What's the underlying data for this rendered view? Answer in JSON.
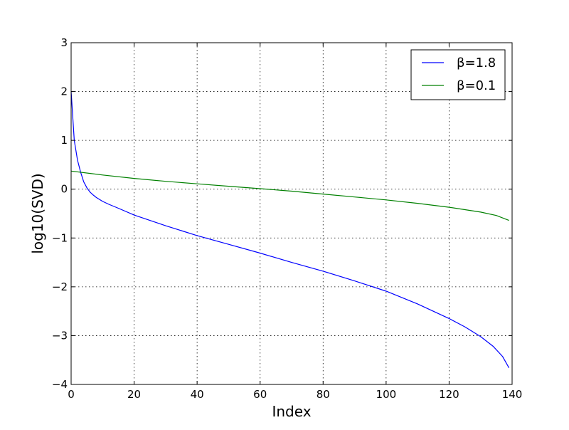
{
  "chart_data": {
    "type": "line",
    "title": "",
    "xlabel": "Index",
    "ylabel": "log10(SVD)",
    "xlim": [
      0,
      140
    ],
    "ylim": [
      -4,
      3
    ],
    "xticks": [
      0,
      20,
      40,
      60,
      80,
      100,
      120,
      140
    ],
    "yticks": [
      3,
      2,
      1,
      0,
      -1,
      -2,
      -3,
      -4
    ],
    "xtick_labels": [
      "0",
      "20",
      "40",
      "60",
      "80",
      "100",
      "120",
      "140"
    ],
    "ytick_labels": [
      "3",
      "2",
      "1",
      "0",
      "−1",
      "−2",
      "−3",
      "−4"
    ],
    "grid": true,
    "legend_position": "top-right",
    "series": [
      {
        "name": "β=1.8",
        "color": "#0000ff",
        "x": [
          0,
          1,
          2,
          3,
          4,
          5,
          6,
          7,
          8,
          10,
          12,
          15,
          20,
          30,
          40,
          50,
          60,
          70,
          80,
          90,
          100,
          110,
          120,
          125,
          130,
          134,
          137,
          139
        ],
        "y": [
          2.0,
          1.0,
          0.6,
          0.35,
          0.15,
          0.03,
          -0.06,
          -0.12,
          -0.17,
          -0.25,
          -0.31,
          -0.39,
          -0.53,
          -0.75,
          -0.95,
          -1.13,
          -1.31,
          -1.5,
          -1.68,
          -1.88,
          -2.09,
          -2.35,
          -2.65,
          -2.82,
          -3.02,
          -3.22,
          -3.43,
          -3.66
        ]
      },
      {
        "name": "β=0.1",
        "color": "#008000",
        "x": [
          0,
          10,
          20,
          30,
          40,
          50,
          60,
          70,
          80,
          90,
          100,
          110,
          120,
          125,
          130,
          135,
          139
        ],
        "y": [
          0.37,
          0.29,
          0.22,
          0.16,
          0.11,
          0.06,
          0.01,
          -0.04,
          -0.1,
          -0.16,
          -0.22,
          -0.29,
          -0.37,
          -0.42,
          -0.47,
          -0.54,
          -0.64
        ]
      }
    ]
  }
}
